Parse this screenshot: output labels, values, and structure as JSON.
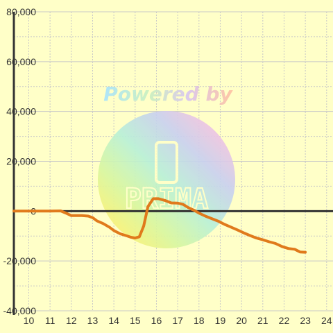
{
  "chart_data": {
    "type": "line",
    "title": "",
    "xlabel": "",
    "ylabel": "",
    "xlim": [
      9.3,
      24.3
    ],
    "ylim": [
      -40000,
      80000
    ],
    "x_ticks": [
      "10",
      "11",
      "12",
      "13",
      "14",
      "15",
      "16",
      "17",
      "18",
      "19",
      "20",
      "21",
      "22",
      "23",
      "24"
    ],
    "y_ticks": [
      "80,000",
      "60,000",
      "40,000",
      "20,000",
      "0",
      "-20,000",
      "-40,000"
    ],
    "y_tick_values": [
      80000,
      60000,
      40000,
      20000,
      0,
      -20000,
      -40000
    ],
    "grid": true,
    "series": [
      {
        "color": "#e07a1c",
        "points": [
          [
            9.3,
            0
          ],
          [
            10.5,
            0
          ],
          [
            11.0,
            0
          ],
          [
            11.5,
            100
          ],
          [
            11.8,
            -1000
          ],
          [
            12.0,
            -1800
          ],
          [
            12.5,
            -1800
          ],
          [
            12.8,
            -2000
          ],
          [
            13.0,
            -2600
          ],
          [
            13.2,
            -3900
          ],
          [
            13.5,
            -5000
          ],
          [
            13.8,
            -6500
          ],
          [
            14.0,
            -7800
          ],
          [
            14.3,
            -9100
          ],
          [
            14.6,
            -9900
          ],
          [
            14.8,
            -10500
          ],
          [
            15.0,
            -10800
          ],
          [
            15.2,
            -10300
          ],
          [
            15.4,
            -6000
          ],
          [
            15.6,
            1800
          ],
          [
            15.85,
            5000
          ],
          [
            16.1,
            5000
          ],
          [
            16.4,
            4300
          ],
          [
            16.7,
            3300
          ],
          [
            17.0,
            3200
          ],
          [
            17.25,
            2700
          ],
          [
            17.5,
            1400
          ],
          [
            17.8,
            200
          ],
          [
            18.0,
            -800
          ],
          [
            18.3,
            -2000
          ],
          [
            18.6,
            -3000
          ],
          [
            18.9,
            -4000
          ],
          [
            19.2,
            -5300
          ],
          [
            19.5,
            -6400
          ],
          [
            19.8,
            -7500
          ],
          [
            20.1,
            -8700
          ],
          [
            20.4,
            -9800
          ],
          [
            20.7,
            -10800
          ],
          [
            21.0,
            -11500
          ],
          [
            21.3,
            -12300
          ],
          [
            21.6,
            -13000
          ],
          [
            21.9,
            -14200
          ],
          [
            22.2,
            -15000
          ],
          [
            22.5,
            -15300
          ],
          [
            22.75,
            -16400
          ],
          [
            23.0,
            -16500
          ]
        ]
      }
    ]
  },
  "watermark": {
    "text": "Powered by",
    "brand": "PRIMA"
  },
  "colors": {
    "background": "#ffffc8",
    "grid": "#c8c8c8",
    "axis": "#333333",
    "line": "#e07a1c"
  }
}
